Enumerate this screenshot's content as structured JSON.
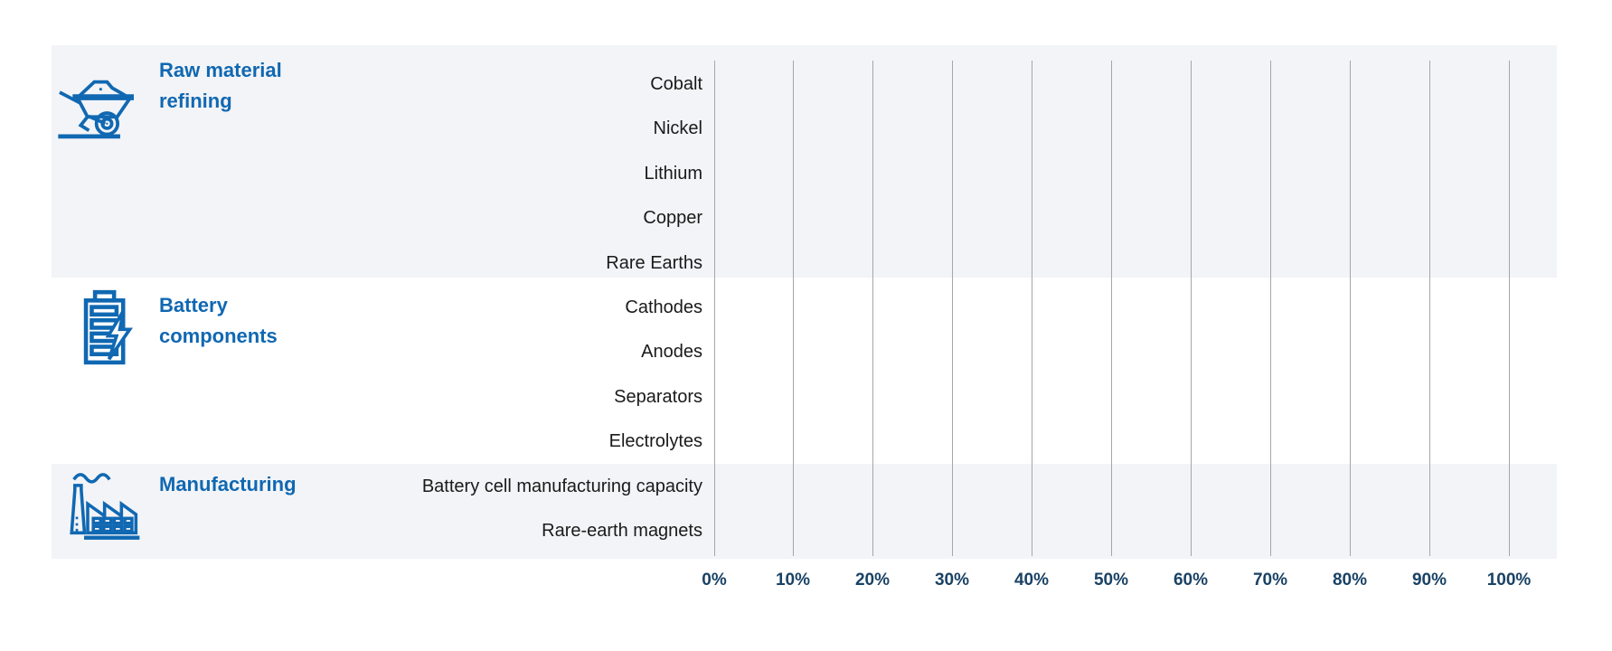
{
  "chart_data": {
    "type": "bar",
    "orientation": "horizontal",
    "title": "",
    "groups": [
      {
        "label": "Raw material refining",
        "icon": "wheelbarrow-icon",
        "categories": [
          "Cobalt",
          "Nickel",
          "Lithium",
          "Copper",
          "Rare Earths"
        ]
      },
      {
        "label": "Battery components",
        "icon": "battery-icon",
        "categories": [
          "Cathodes",
          "Anodes",
          "Separators",
          "Electrolytes"
        ]
      },
      {
        "label": "Manufacturing",
        "icon": "factory-icon",
        "categories": [
          "Battery cell manufacturing capacity",
          "Rare-earth magnets"
        ]
      }
    ],
    "categories": [
      "Cobalt",
      "Nickel",
      "Lithium",
      "Copper",
      "Rare Earths",
      "Cathodes",
      "Anodes",
      "Separators",
      "Electrolytes",
      "Battery cell manufacturing capacity",
      "Rare-earth magnets"
    ],
    "series": [],
    "bars_rendered": false,
    "x_axis": {
      "min": 0,
      "max": 100,
      "unit": "%",
      "tick_labels": [
        "0%",
        "10%",
        "20%",
        "30%",
        "40%",
        "50%",
        "60%",
        "70%",
        "80%",
        "90%",
        "100%"
      ]
    },
    "grid": "vertical-gridlines",
    "legend": "none"
  },
  "colors": {
    "accent_blue": "#1068b2",
    "axis_label_navy": "#1a4265",
    "band_gray": "#f3f4f7",
    "gridline_gray": "#a6a6a6",
    "row_label_text": "#1a1a1a"
  }
}
